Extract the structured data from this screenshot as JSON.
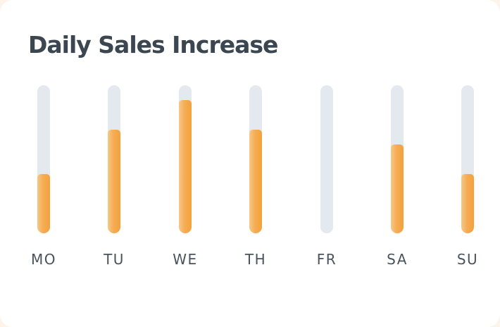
{
  "card": {
    "title": "Daily Sales Increase",
    "track_color": "#e4e8ef",
    "fill_color": "#f4a23a",
    "title_color": "#3b4650"
  },
  "chart_data": {
    "type": "bar",
    "title": "Daily Sales Increase",
    "categories": [
      "MO",
      "TU",
      "WE",
      "TH",
      "FR",
      "SA",
      "SU"
    ],
    "values": [
      0.4,
      0.7,
      0.9,
      0.7,
      0,
      0.6,
      0.4
    ],
    "ylim": [
      0,
      1
    ],
    "grid": false,
    "legend": "none"
  }
}
